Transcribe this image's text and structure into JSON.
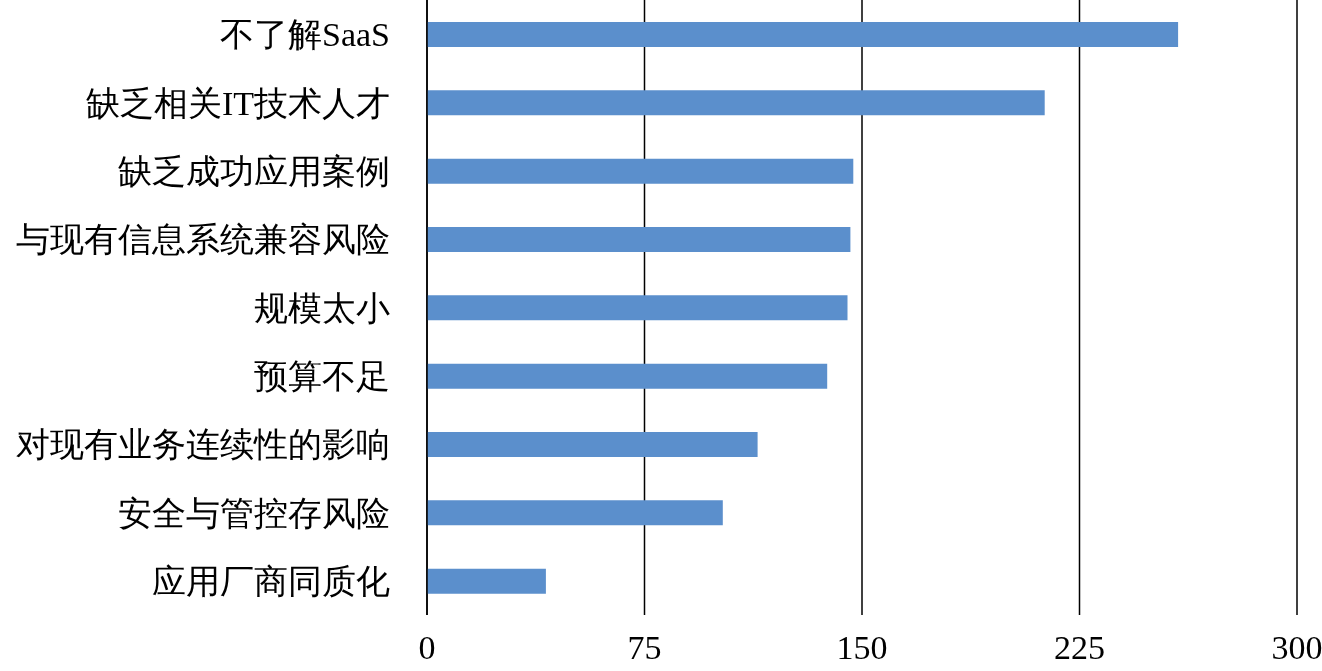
{
  "chart_data": {
    "type": "bar",
    "orientation": "horizontal",
    "categories": [
      "不了解SaaS",
      "缺乏相关IT技术人才",
      "缺乏成功应用案例",
      "与现有信息系统兼容风险",
      "规模太小",
      "预算不足",
      "对现有业务连续性的影响",
      "安全与管控存风险",
      "应用厂商同质化"
    ],
    "values": [
      259,
      213,
      147,
      146,
      145,
      138,
      114,
      102,
      41
    ],
    "color": "#5b8fcc",
    "xlim": [
      0,
      300
    ],
    "xticks": [
      0,
      75,
      150,
      225,
      300
    ],
    "grid": "x"
  }
}
